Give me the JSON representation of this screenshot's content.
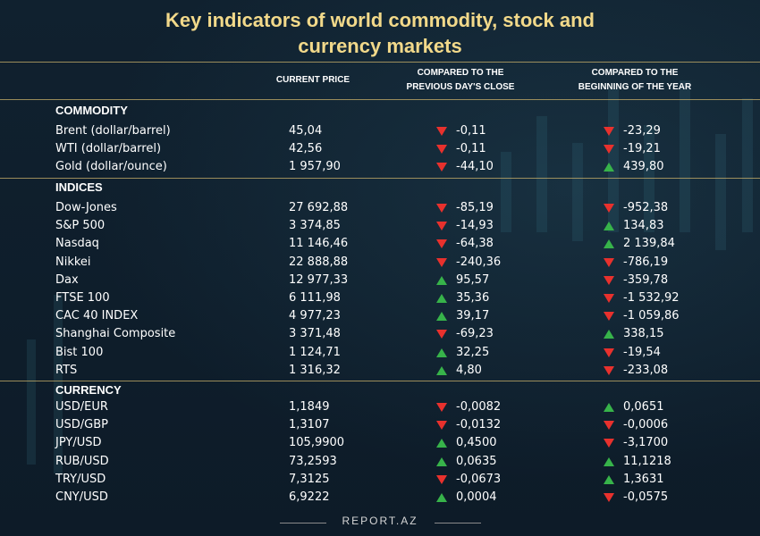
{
  "title": {
    "line1": "Key indicators of world commodity, stock and",
    "line2": "currency markets"
  },
  "headers": {
    "current_price": "CURRENT PRICE",
    "prev_line1": "COMPARED TO THE",
    "prev_line2": "PREVIOUS DAY'S CLOSE",
    "year_line1": "COMPARED TO THE",
    "year_line2": "BEGINNING OF THE YEAR"
  },
  "colors": {
    "title": "#f2d98a",
    "up": "#37b34a",
    "down": "#e8312d",
    "background": "#0f1e2c"
  },
  "sections": [
    {
      "label": "COMMODITY",
      "rows": [
        {
          "name": "Brent (dollar/barrel)",
          "price": "45,04",
          "d1": "down",
          "v1": "-0,11",
          "d2": "down",
          "v2": "-23,29"
        },
        {
          "name": "WTI (dollar/barrel)",
          "price": "42,56",
          "d1": "down",
          "v1": "-0,11",
          "d2": "down",
          "v2": "-19,21"
        },
        {
          "name": "Gold (dollar/ounce)",
          "price": "1 957,90",
          "d1": "down",
          "v1": "-44,10",
          "d2": "up",
          "v2": "439,80"
        }
      ]
    },
    {
      "label": "INDICES",
      "rows": [
        {
          "name": "Dow-Jones",
          "price": "27 692,88",
          "d1": "down",
          "v1": "-85,19",
          "d2": "down",
          "v2": "-952,38"
        },
        {
          "name": "S&P 500",
          "price": "3 374,85",
          "d1": "down",
          "v1": "-14,93",
          "d2": "up",
          "v2": "134,83"
        },
        {
          "name": "Nasdaq",
          "price": "11 146,46",
          "d1": "down",
          "v1": "-64,38",
          "d2": "up",
          "v2": "2 139,84"
        },
        {
          "name": "Nikkei",
          "price": "22 888,88",
          "d1": "down",
          "v1": "-240,36",
          "d2": "down",
          "v2": "-786,19"
        },
        {
          "name": "Dax",
          "price": "12 977,33",
          "d1": "up",
          "v1": "95,57",
          "d2": "down",
          "v2": "-359,78"
        },
        {
          "name": "FTSE 100",
          "price": "6 111,98",
          "d1": "up",
          "v1": "35,36",
          "d2": "down",
          "v2": "-1 532,92"
        },
        {
          "name": "CAC 40 INDEX",
          "price": "4 977,23",
          "d1": "up",
          "v1": "39,17",
          "d2": "down",
          "v2": "-1 059,86"
        },
        {
          "name": "Shanghai Composite",
          "price": "3 371,48",
          "d1": "down",
          "v1": "-69,23",
          "d2": "up",
          "v2": "338,15"
        },
        {
          "name": "Bist 100",
          "price": "1 124,71",
          "d1": "up",
          "v1": "32,25",
          "d2": "down",
          "v2": "-19,54"
        },
        {
          "name": "RTS",
          "price": "1 316,32",
          "d1": "up",
          "v1": "4,80",
          "d2": "down",
          "v2": "-233,08"
        }
      ]
    },
    {
      "label": "CURRENCY",
      "rows": [
        {
          "name": "USD/EUR",
          "price": "1,1849",
          "d1": "down",
          "v1": "-0,0082",
          "d2": "up",
          "v2": "0,0651"
        },
        {
          "name": "USD/GBP",
          "price": "1,3107",
          "d1": "down",
          "v1": "-0,0132",
          "d2": "down",
          "v2": "-0,0006"
        },
        {
          "name": "JPY/USD",
          "price": "105,9900",
          "d1": "up",
          "v1": "0,4500",
          "d2": "down",
          "v2": "-3,1700"
        },
        {
          "name": "RUB/USD",
          "price": "73,2593",
          "d1": "up",
          "v1": "0,0635",
          "d2": "up",
          "v2": "11,1218"
        },
        {
          "name": "TRY/USD",
          "price": "7,3125",
          "d1": "down",
          "v1": "-0,0673",
          "d2": "up",
          "v2": "1,3631"
        },
        {
          "name": "CNY/USD",
          "price": "6,9222",
          "d1": "up",
          "v1": "0,0004",
          "d2": "down",
          "v2": "-0,0575"
        }
      ]
    }
  ],
  "footer": "REPORT.AZ"
}
